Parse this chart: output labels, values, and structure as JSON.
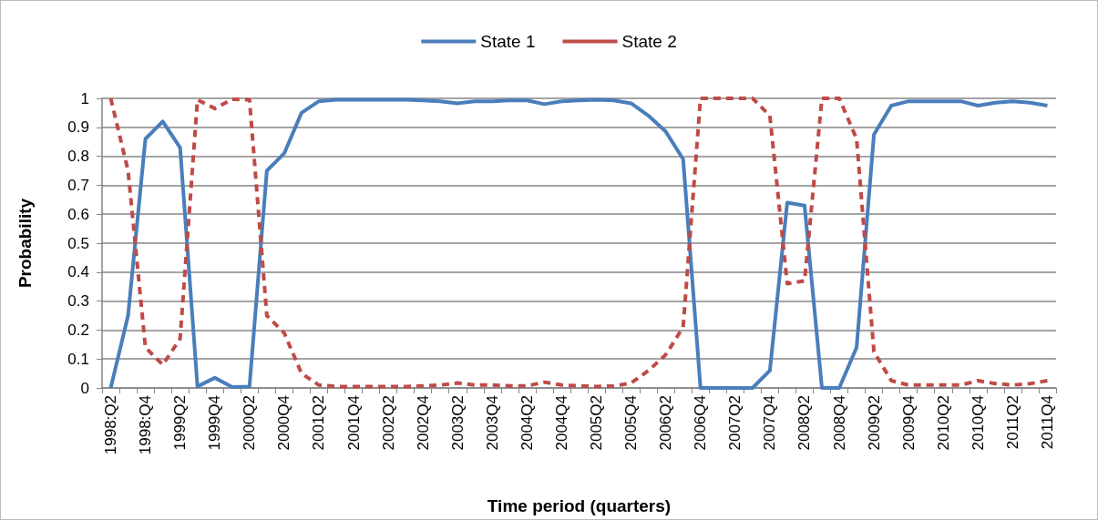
{
  "chart_data": {
    "type": "line",
    "xlabel": "Time period (quarters)",
    "ylabel": "Probability",
    "categories": [
      "1998:Q2",
      null,
      "1998:Q4",
      null,
      "1999Q2",
      null,
      "1999Q4",
      null,
      "2000Q2",
      null,
      "2000Q4",
      null,
      "2001Q2",
      null,
      "2001Q4",
      null,
      "2002Q2",
      null,
      "2002Q4",
      null,
      "2003Q2",
      null,
      "2003Q4",
      null,
      "2004Q2",
      null,
      "2004Q4",
      null,
      "2005Q2",
      null,
      "2005Q4",
      null,
      "2006Q2",
      null,
      "2006Q4",
      null,
      "2007Q2",
      null,
      "2007Q4",
      null,
      "2008Q2",
      null,
      "2008Q4",
      null,
      "2009Q2",
      null,
      "2009Q4",
      null,
      "2010Q2",
      null,
      "2010Q4",
      null,
      "2011Q2",
      null,
      "2011Q4"
    ],
    "series": [
      {
        "name": "State 1",
        "color": "#4a7ebb",
        "line_style": "solid",
        "values": [
          0,
          0.25,
          0.86,
          0.92,
          0.83,
          0.005,
          0.035,
          0.003,
          0.005,
          0.75,
          0.81,
          0.95,
          0.99,
          0.995,
          0.995,
          0.995,
          0.995,
          0.995,
          0.993,
          0.99,
          0.983,
          0.99,
          0.99,
          0.993,
          0.993,
          0.98,
          0.99,
          0.993,
          0.995,
          0.993,
          0.983,
          0.94,
          0.885,
          0.79,
          0,
          0,
          0,
          0,
          0.06,
          0.64,
          0.63,
          0,
          0,
          0.14,
          0.875,
          0.975,
          0.99,
          0.99,
          0.99,
          0.99,
          0.975,
          0.985,
          0.99,
          0.985,
          0.975
        ]
      },
      {
        "name": "State 2",
        "color": "#be4b48",
        "line_style": "dashed",
        "values": [
          1,
          0.75,
          0.14,
          0.08,
          0.17,
          0.995,
          0.965,
          0.997,
          0.995,
          0.25,
          0.19,
          0.05,
          0.01,
          0.005,
          0.005,
          0.005,
          0.005,
          0.005,
          0.007,
          0.01,
          0.017,
          0.01,
          0.01,
          0.007,
          0.007,
          0.02,
          0.01,
          0.007,
          0.005,
          0.007,
          0.017,
          0.06,
          0.115,
          0.21,
          1,
          1,
          1,
          1,
          0.94,
          0.36,
          0.37,
          1,
          1,
          0.86,
          0.125,
          0.025,
          0.01,
          0.01,
          0.01,
          0.01,
          0.025,
          0.015,
          0.01,
          0.015,
          0.025
        ]
      }
    ],
    "ylim": [
      0,
      1
    ],
    "yticks": [
      0,
      0.1,
      0.2,
      0.3,
      0.4,
      0.5,
      0.6,
      0.7,
      0.8,
      0.9,
      1
    ],
    "grid": "y",
    "legend": "top",
    "marker": "none"
  }
}
